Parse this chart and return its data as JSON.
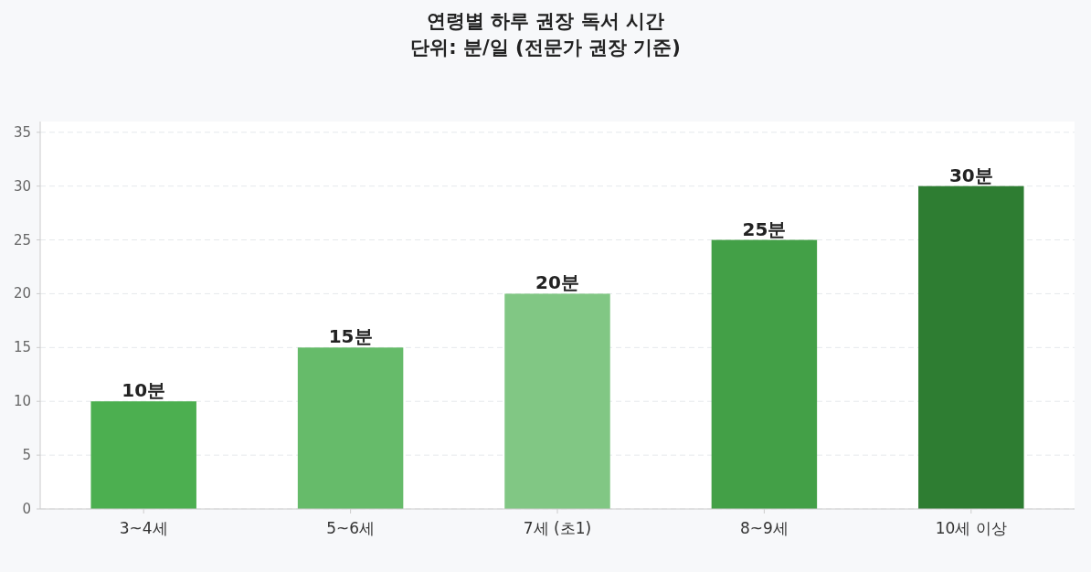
{
  "chart_data": {
    "type": "bar",
    "title": "연령별 하루 권장 독서 시간",
    "subtitle": "단위: 분/일 (전문가 권장 기준)",
    "categories": [
      "3~4세",
      "5~6세",
      "7세 (초1)",
      "8~9세",
      "10세 이상"
    ],
    "values": [
      10,
      15,
      20,
      25,
      30
    ],
    "colors": [
      "#4caf50",
      "#66bb6a",
      "#81c784",
      "#43a047",
      "#2e7d32"
    ],
    "value_labels": [
      "10분",
      "15분",
      "20분",
      "25분",
      "30분"
    ],
    "ylim": [
      0,
      36
    ],
    "yticks": [
      0,
      5,
      10,
      15,
      20,
      25,
      30,
      35
    ],
    "grid": "y"
  }
}
